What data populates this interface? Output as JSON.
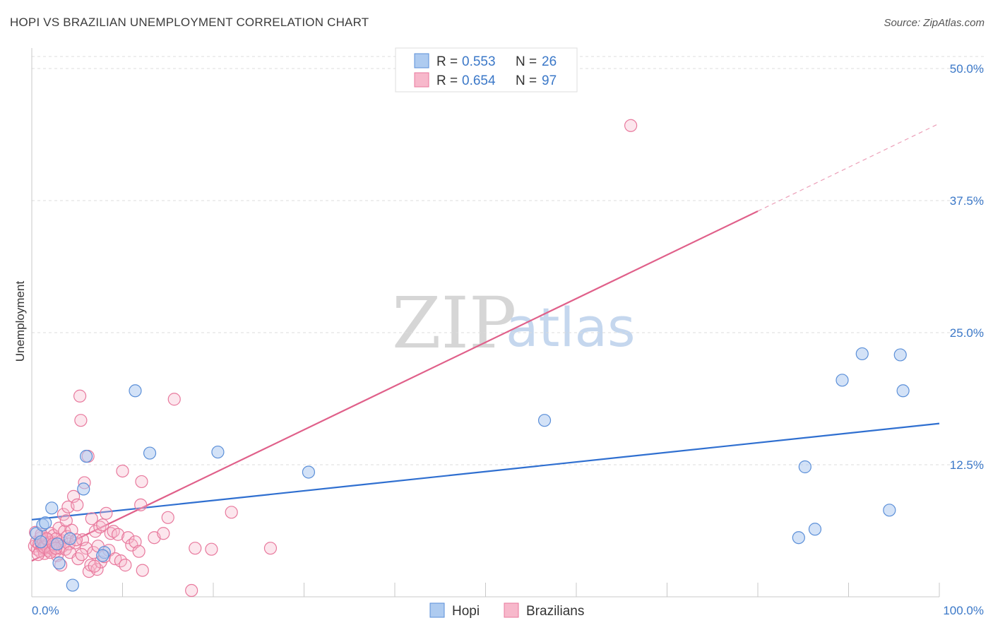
{
  "header": {
    "title": "HOPI VS BRAZILIAN UNEMPLOYMENT CORRELATION CHART",
    "source": "Source: ZipAtlas.com"
  },
  "watermark": {
    "part1": "ZIP",
    "part2": "atlas"
  },
  "legend": {
    "rows": [
      {
        "r_label": "R =",
        "r_value": "0.553",
        "n_label": "N =",
        "n_value": "26"
      },
      {
        "r_label": "R =",
        "r_value": "0.654",
        "n_label": "N =",
        "n_value": "97"
      }
    ]
  },
  "bottom_legend": {
    "series1": "Hopi",
    "series2": "Brazilians"
  },
  "colors": {
    "hopi_fill": "#aecbf0",
    "hopi_stroke": "#5b8fd8",
    "hopi_line": "#2f6fd0",
    "braz_fill": "#f7b8cb",
    "braz_stroke": "#e8799d",
    "braz_line": "#e0608a",
    "tick_text": "#3b78c8",
    "grid": "#dcdcdc"
  },
  "chart_data": {
    "type": "scatter",
    "title": "HOPI VS BRAZILIAN UNEMPLOYMENT CORRELATION CHART",
    "xlabel": "",
    "ylabel": "Unemployment",
    "xlim": [
      0,
      100
    ],
    "ylim": [
      0,
      50
    ],
    "x_tick_labels": [
      "0.0%",
      "100.0%"
    ],
    "y_ticks": [
      12.5,
      25.0,
      37.5,
      50.0
    ],
    "y_tick_labels": [
      "12.5%",
      "25.0%",
      "37.5%",
      "50.0%"
    ],
    "grid": true,
    "legend_position": "top-center",
    "series": [
      {
        "name": "Hopi",
        "R": 0.553,
        "N": 26,
        "trend": {
          "x0": 0,
          "y0": 7.3,
          "x1": 100,
          "y1": 16.4,
          "dash_after": 100
        },
        "points": [
          [
            0.5,
            6.0
          ],
          [
            1.2,
            6.8
          ],
          [
            1.5,
            7.0
          ],
          [
            2.2,
            8.4
          ],
          [
            3.0,
            3.2
          ],
          [
            4.5,
            1.1
          ],
          [
            5.7,
            10.2
          ],
          [
            6.0,
            13.3
          ],
          [
            4.2,
            5.5
          ],
          [
            8.0,
            4.2
          ],
          [
            11.4,
            19.5
          ],
          [
            13.0,
            13.6
          ],
          [
            20.5,
            13.7
          ],
          [
            30.5,
            11.8
          ],
          [
            56.5,
            16.7
          ],
          [
            84.5,
            5.6
          ],
          [
            85.2,
            12.3
          ],
          [
            86.3,
            6.4
          ],
          [
            89.3,
            20.5
          ],
          [
            91.5,
            23.0
          ],
          [
            94.5,
            8.2
          ],
          [
            95.7,
            22.9
          ],
          [
            96.0,
            19.5
          ],
          [
            2.8,
            5.0
          ],
          [
            7.8,
            3.9
          ],
          [
            1.0,
            5.2
          ]
        ]
      },
      {
        "name": "Brazilians",
        "R": 0.654,
        "N": 97,
        "trend": {
          "x0": 0,
          "y0": 3.4,
          "x1": 80,
          "y1": 36.5,
          "dash_x1": 100,
          "dash_y1": 44.8
        },
        "points": [
          [
            0.3,
            4.8
          ],
          [
            0.5,
            5.2
          ],
          [
            0.6,
            4.5
          ],
          [
            0.8,
            5.0
          ],
          [
            0.9,
            4.3
          ],
          [
            1.0,
            5.6
          ],
          [
            1.1,
            4.9
          ],
          [
            1.2,
            4.6
          ],
          [
            1.3,
            5.3
          ],
          [
            1.4,
            4.1
          ],
          [
            1.5,
            5.0
          ],
          [
            1.6,
            4.8
          ],
          [
            1.7,
            5.4
          ],
          [
            1.8,
            4.4
          ],
          [
            1.9,
            5.1
          ],
          [
            2.0,
            4.7
          ],
          [
            2.1,
            6.0
          ],
          [
            2.2,
            5.2
          ],
          [
            2.3,
            4.5
          ],
          [
            2.4,
            5.8
          ],
          [
            2.5,
            4.9
          ],
          [
            2.6,
            4.3
          ],
          [
            2.7,
            5.5
          ],
          [
            2.8,
            3.9
          ],
          [
            2.9,
            5.0
          ],
          [
            3.0,
            6.5
          ],
          [
            3.1,
            4.6
          ],
          [
            3.2,
            3.0
          ],
          [
            3.3,
            5.3
          ],
          [
            3.4,
            4.8
          ],
          [
            3.5,
            7.8
          ],
          [
            3.6,
            6.2
          ],
          [
            3.7,
            4.5
          ],
          [
            3.8,
            7.2
          ],
          [
            3.9,
            5.7
          ],
          [
            4.0,
            8.5
          ],
          [
            4.1,
            5.0
          ],
          [
            4.2,
            4.2
          ],
          [
            4.4,
            6.3
          ],
          [
            4.6,
            9.5
          ],
          [
            4.8,
            5.1
          ],
          [
            5.0,
            8.7
          ],
          [
            5.1,
            3.6
          ],
          [
            5.3,
            19.0
          ],
          [
            5.4,
            16.7
          ],
          [
            5.6,
            5.4
          ],
          [
            5.8,
            10.8
          ],
          [
            6.0,
            4.6
          ],
          [
            6.2,
            13.3
          ],
          [
            6.3,
            2.4
          ],
          [
            6.5,
            3.0
          ],
          [
            6.6,
            7.4
          ],
          [
            6.8,
            4.2
          ],
          [
            7.0,
            6.2
          ],
          [
            7.2,
            2.6
          ],
          [
            7.3,
            4.8
          ],
          [
            7.5,
            6.6
          ],
          [
            7.6,
            3.3
          ],
          [
            7.8,
            6.8
          ],
          [
            8.0,
            3.8
          ],
          [
            8.2,
            7.9
          ],
          [
            8.5,
            4.4
          ],
          [
            8.7,
            6.0
          ],
          [
            9.0,
            6.2
          ],
          [
            9.2,
            3.6
          ],
          [
            9.5,
            5.9
          ],
          [
            9.8,
            3.4
          ],
          [
            10.0,
            11.9
          ],
          [
            10.3,
            3.0
          ],
          [
            10.6,
            5.6
          ],
          [
            11.0,
            4.9
          ],
          [
            11.4,
            5.2
          ],
          [
            11.8,
            4.3
          ],
          [
            12.0,
            8.7
          ],
          [
            12.1,
            10.9
          ],
          [
            12.2,
            2.5
          ],
          [
            13.5,
            5.6
          ],
          [
            14.5,
            6.0
          ],
          [
            15.0,
            7.5
          ],
          [
            15.7,
            18.7
          ],
          [
            17.6,
            0.6
          ],
          [
            18.0,
            4.6
          ],
          [
            19.8,
            4.5
          ],
          [
            22.0,
            8.0
          ],
          [
            26.3,
            4.6
          ],
          [
            66.0,
            44.6
          ],
          [
            0.4,
            6.1
          ],
          [
            0.7,
            4.0
          ],
          [
            1.05,
            5.9
          ],
          [
            1.35,
            4.7
          ],
          [
            1.65,
            5.5
          ],
          [
            2.05,
            4.2
          ],
          [
            2.35,
            5.0
          ],
          [
            2.65,
            4.6
          ],
          [
            4.9,
            5.4
          ],
          [
            5.5,
            4.0
          ],
          [
            6.9,
            2.9
          ]
        ]
      }
    ]
  }
}
